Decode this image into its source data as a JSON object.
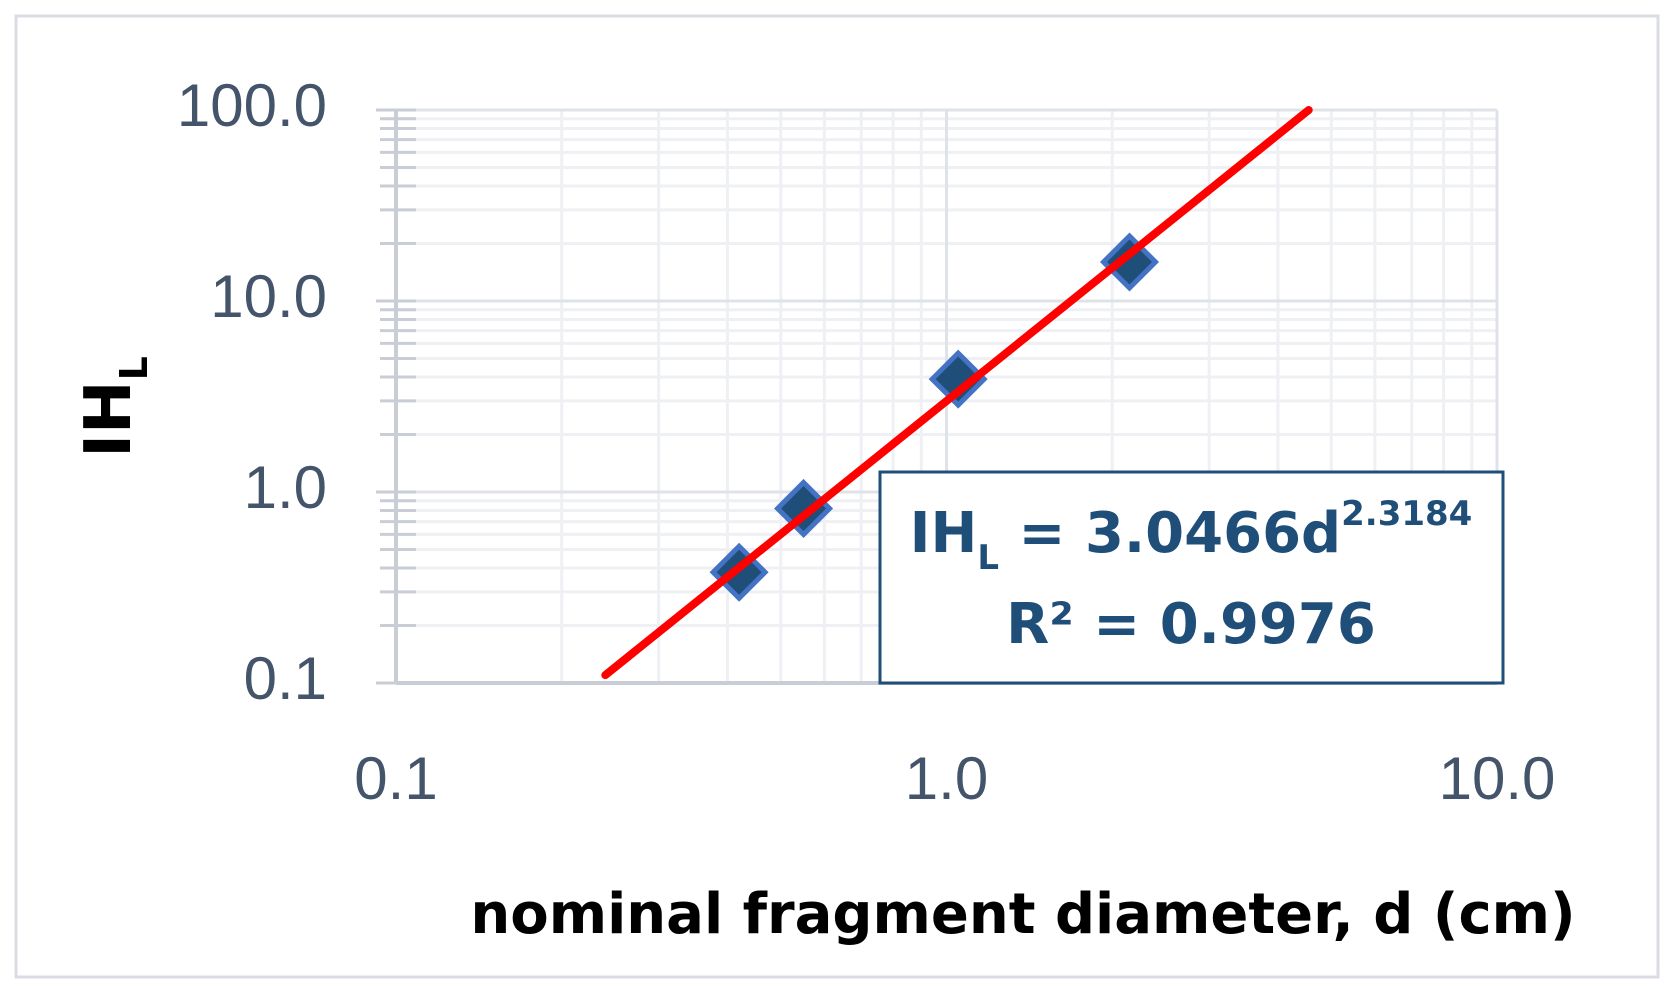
{
  "chart_data": {
    "type": "scatter",
    "x_label": "nominal fragment diameter, d (cm)",
    "y_label": "IH",
    "y_label_sub": "L",
    "x": [
      0.42,
      0.55,
      1.05,
      2.15
    ],
    "series": [
      {
        "color": "#1f4e79",
        "values": [
          0.38,
          0.82,
          3.9,
          16
        ]
      }
    ],
    "trendline": {
      "color": "#ff0000",
      "x": [
        0.24,
        4.55
      ],
      "values": [
        0.11,
        100
      ]
    },
    "equation": {
      "lhs": "IH",
      "lhs_sub": "L",
      "rhs": " = 3.0466d",
      "exponent": "2.3184",
      "r2": "R² = 0.9976"
    },
    "xlog": true,
    "ylog": true,
    "grid": true,
    "minor_grid": true,
    "xlim": [
      0.1,
      10
    ],
    "xticks": [
      0.1,
      {
        "value": 1,
        "label": "1.0"
      },
      {
        "value": 10,
        "label": "10.0"
      }
    ],
    "ylim": [
      0.1,
      100
    ],
    "yticks": [
      0.1,
      {
        "value": 1,
        "label": "1.0"
      },
      {
        "value": 10,
        "label": "10.0"
      },
      {
        "value": 100,
        "label": "100.0"
      }
    ]
  }
}
